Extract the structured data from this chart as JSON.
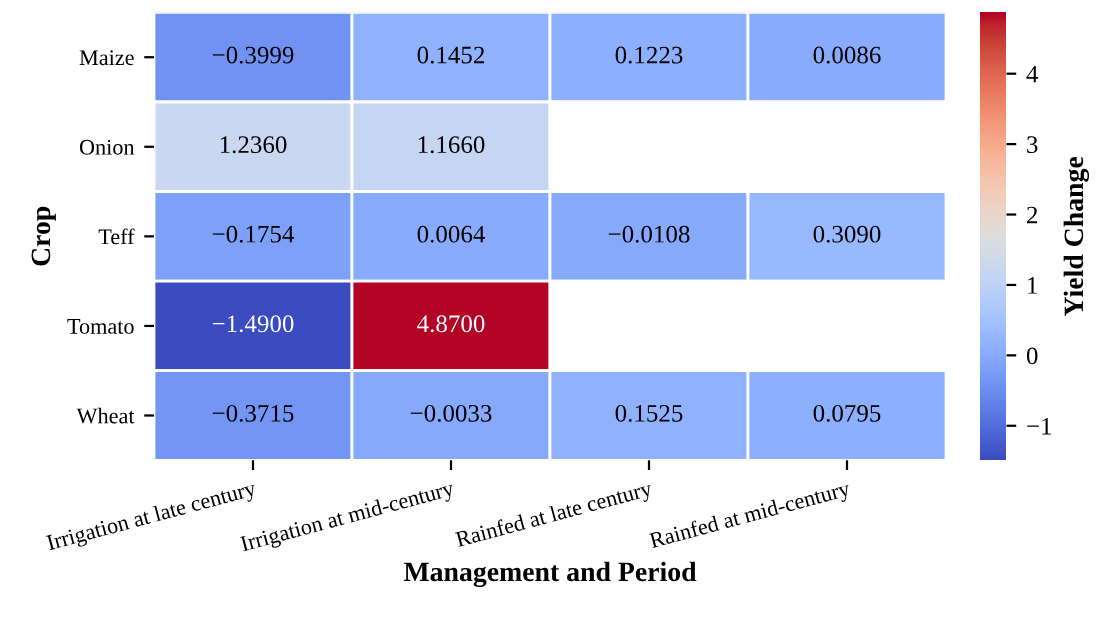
{
  "chart_data": {
    "type": "heatmap",
    "xlabel": "Management and Period",
    "ylabel": "Crop",
    "clabel": "Yield Change",
    "categories": [
      "Irrigation at late century",
      "Irrigation at mid-century",
      "Rainfed at late century",
      "Rainfed at mid-century"
    ],
    "y_categories": [
      "Maize",
      "Onion",
      "Teff",
      "Tomato",
      "Wheat"
    ],
    "cells": [
      [
        -0.3999,
        0.1452,
        0.1223,
        0.0086
      ],
      [
        1.236,
        1.166,
        null,
        null
      ],
      [
        -0.1754,
        0.0064,
        -0.0108,
        0.309
      ],
      [
        -1.49,
        4.87,
        null,
        null
      ],
      [
        -0.3715,
        -0.0033,
        0.1525,
        0.0795
      ]
    ],
    "cell_labels": [
      [
        "−0.3999",
        "0.1452",
        "0.1223",
        "0.0086"
      ],
      [
        "1.2360",
        "1.1660",
        null,
        null
      ],
      [
        "−0.1754",
        "0.0064",
        "−0.0108",
        "0.3090"
      ],
      [
        "−1.4900",
        "4.8700",
        null,
        null
      ],
      [
        "−0.3715",
        "−0.0033",
        "0.1525",
        "0.0795"
      ]
    ],
    "clim": [
      -1.49,
      4.87
    ],
    "cticks": [
      {
        "value": -1,
        "label": "−1"
      },
      0,
      1,
      2,
      3,
      4
    ]
  }
}
